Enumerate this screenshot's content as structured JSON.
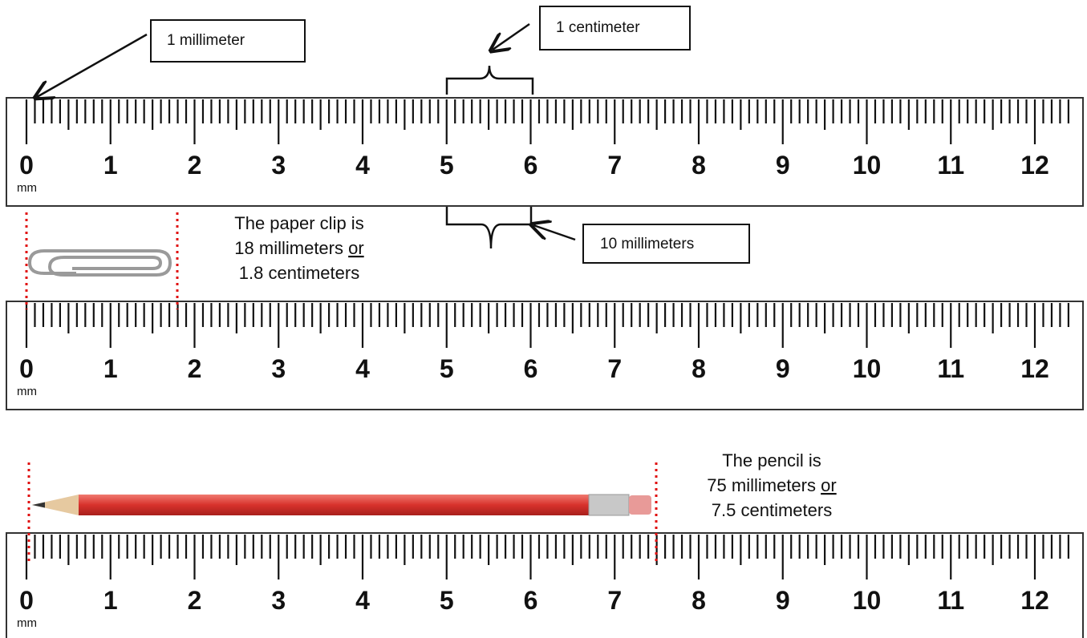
{
  "callouts": {
    "millimeter": "1 millimeter",
    "centimeter": "1 centimeter",
    "ten_millimeters": "10 millimeters"
  },
  "rulers": [
    {
      "labels": [
        0,
        1,
        2,
        3,
        4,
        5,
        6,
        7,
        8,
        9,
        10,
        11,
        12
      ],
      "unit": "mm"
    },
    {
      "labels": [
        0,
        1,
        2,
        3,
        4,
        5,
        6,
        7,
        8,
        9,
        10,
        11,
        12
      ],
      "unit": "mm"
    },
    {
      "labels": [
        0,
        1,
        2,
        3,
        4,
        5,
        6,
        7,
        8,
        9,
        10,
        11,
        12
      ],
      "unit": "mm"
    }
  ],
  "paper_clip": {
    "lines": [
      "The paper clip is",
      "18 millimeters",
      "or",
      "1.8 centimeters"
    ]
  },
  "pencil": {
    "lines": [
      "The pencil is",
      "75 millimeters",
      "or",
      "7.5 centimeters"
    ]
  }
}
